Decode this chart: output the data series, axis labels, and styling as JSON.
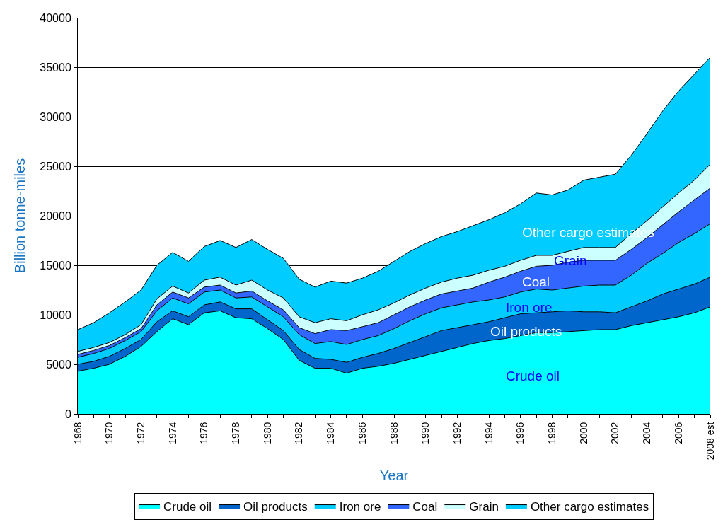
{
  "chart_data": {
    "type": "area",
    "stacked": true,
    "xlabel": "Year",
    "ylabel": "Billion tonne-miles",
    "categories": [
      "1968",
      null,
      "1970",
      null,
      "1972",
      null,
      "1974",
      null,
      "1976",
      null,
      "1978",
      null,
      "1980",
      null,
      "1982",
      null,
      "1984",
      null,
      "1986",
      null,
      "1988",
      null,
      "1990",
      null,
      "1992",
      null,
      "1994",
      null,
      "1996",
      null,
      "1998",
      null,
      "2000",
      null,
      "2002",
      null,
      "2004",
      null,
      "2006",
      null,
      "2008 est"
    ],
    "series": [
      {
        "name": "Crude oil",
        "color": "#00ffff",
        "values": [
          4300,
          4600,
          5000,
          5800,
          6800,
          8300,
          9600,
          9000,
          10200,
          10400,
          9700,
          9600,
          8600,
          7500,
          5400,
          4600,
          4600,
          4100,
          4600,
          4800,
          5100,
          5500,
          5900,
          6300,
          6700,
          7100,
          7400,
          7600,
          7900,
          8200,
          8200,
          8300,
          8400,
          8500,
          8500,
          8900,
          9200,
          9500,
          9800,
          10200,
          10800
        ]
      },
      {
        "name": "Oil products",
        "color": "#0066cc",
        "values": [
          700,
          700,
          800,
          800,
          700,
          1000,
          800,
          800,
          800,
          900,
          900,
          1000,
          900,
          900,
          1100,
          1000,
          900,
          1100,
          1100,
          1300,
          1500,
          1700,
          1900,
          2100,
          2000,
          1900,
          1900,
          2100,
          2200,
          2000,
          2100,
          2100,
          1900,
          1800,
          1700,
          1900,
          2200,
          2600,
          2800,
          2900,
          3000
        ]
      },
      {
        "name": "Iron ore",
        "color": "#00ccff",
        "values": [
          700,
          800,
          800,
          800,
          800,
          1100,
          1300,
          1300,
          1300,
          1200,
          1100,
          1200,
          1300,
          1400,
          1500,
          1500,
          1800,
          1800,
          1800,
          1800,
          2000,
          2200,
          2300,
          2300,
          2300,
          2300,
          2200,
          2100,
          2200,
          2400,
          2200,
          2300,
          2600,
          2700,
          2800,
          3200,
          3800,
          4100,
          4700,
          5100,
          5400
        ]
      },
      {
        "name": "Coal",
        "color": "#3366ff",
        "values": [
          300,
          300,
          300,
          300,
          300,
          600,
          600,
          600,
          500,
          500,
          500,
          600,
          600,
          700,
          700,
          1000,
          1200,
          1400,
          1300,
          1300,
          1400,
          1400,
          1400,
          1400,
          1400,
          1400,
          1800,
          2000,
          2100,
          2300,
          2500,
          2600,
          2600,
          2500,
          2500,
          2600,
          2600,
          2900,
          3100,
          3400,
          3600
        ]
      },
      {
        "name": "Grain",
        "color": "#ccffff",
        "values": [
          300,
          300,
          300,
          300,
          400,
          600,
          600,
          500,
          700,
          800,
          800,
          1100,
          1100,
          1200,
          1100,
          1100,
          1100,
          1000,
          1200,
          1300,
          1200,
          1200,
          1200,
          1200,
          1300,
          1300,
          1200,
          1100,
          1100,
          1100,
          1000,
          1100,
          1300,
          1300,
          1300,
          1600,
          1700,
          1800,
          1900,
          2000,
          2400
        ]
      },
      {
        "name": "Other cargo estimates",
        "color": "#00ccff",
        "values": [
          2200,
          2500,
          3000,
          3300,
          3500,
          3400,
          3400,
          3200,
          3400,
          3700,
          3800,
          4100,
          4100,
          4000,
          3800,
          3600,
          3800,
          3800,
          3700,
          3900,
          4200,
          4400,
          4500,
          4600,
          4700,
          5000,
          5100,
          5400,
          5700,
          6300,
          6100,
          6200,
          6800,
          7100,
          7400,
          7900,
          8800,
          9700,
          10300,
          10700,
          10800
        ]
      }
    ],
    "ylim": [
      0,
      40000
    ],
    "yticks": [
      0,
      5000,
      10000,
      15000,
      20000,
      25000,
      30000,
      35000,
      40000
    ],
    "grid": "y",
    "legend": "bottom"
  }
}
